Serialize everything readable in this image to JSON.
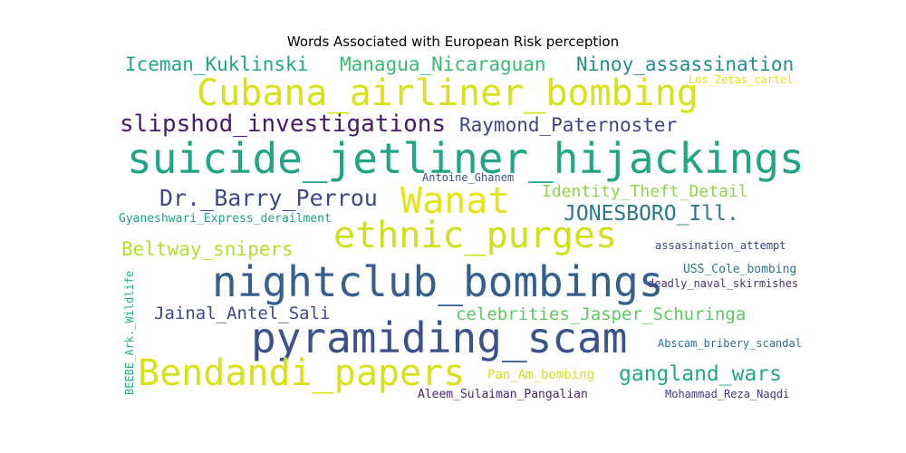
{
  "chart_data": {
    "type": "wordcloud",
    "title": "Words Associated with European Risk perception",
    "words": [
      {
        "text": "suicide_jetliner_hijackings",
        "color": "#21a685"
      },
      {
        "text": "pyramiding_scam",
        "color": "#3b528b"
      },
      {
        "text": "nightclub_bombings",
        "color": "#355f8d"
      },
      {
        "text": "Cubana_airliner_bombing",
        "color": "#d8e219"
      },
      {
        "text": "ethnic_purges",
        "color": "#d0e11c"
      },
      {
        "text": "Bendandi_papers",
        "color": "#d8e219"
      },
      {
        "text": "Wanat",
        "color": "#e5e419"
      },
      {
        "text": "slipshod_investigations",
        "color": "#481a6c"
      },
      {
        "text": "Iceman_Kuklinski",
        "color": "#22a884"
      },
      {
        "text": "Managua_Nicaraguan",
        "color": "#3aba76"
      },
      {
        "text": "Ninoy_assassination",
        "color": "#228d8d"
      },
      {
        "text": "Raymond_Paternoster",
        "color": "#414487"
      },
      {
        "text": "Dr._Barry_Perrou",
        "color": "#3e4989"
      },
      {
        "text": "JONESBORO_Ill.",
        "color": "#2a788e"
      },
      {
        "text": "gangland_wars",
        "color": "#22a884"
      },
      {
        "text": "Beltway_snipers",
        "color": "#b5de2b"
      },
      {
        "text": "Jainal_Antel_Sali",
        "color": "#3e4a89"
      },
      {
        "text": "celebrities_Jasper_Schuringa",
        "color": "#5ec962"
      },
      {
        "text": "Identity_Theft_Detail",
        "color": "#8bd646"
      },
      {
        "text": "Gyaneshwari_Express_derailment",
        "color": "#1f9e89"
      },
      {
        "text": "Antoine_Ghanem",
        "color": "#3b528b"
      },
      {
        "text": "Los_Zetas_cartel",
        "color": "#e2e418"
      },
      {
        "text": "assasination_attempt",
        "color": "#404387"
      },
      {
        "text": "USS_Cole_bombing",
        "color": "#2c728e"
      },
      {
        "text": "deadly_naval_skirmishes",
        "color": "#46327e"
      },
      {
        "text": "Abscam_bribery_scandal",
        "color": "#2e6f8e"
      },
      {
        "text": "Pan_Am_bombing",
        "color": "#d2e21b"
      },
      {
        "text": "Aleem_Sulaiman_Pangalian",
        "color": "#482475"
      },
      {
        "text": "Mohammad_Reza_Naqdi",
        "color": "#443a83"
      },
      {
        "text": "BEEBE_Ark._Wildlife",
        "color": "#29af7f"
      }
    ]
  }
}
